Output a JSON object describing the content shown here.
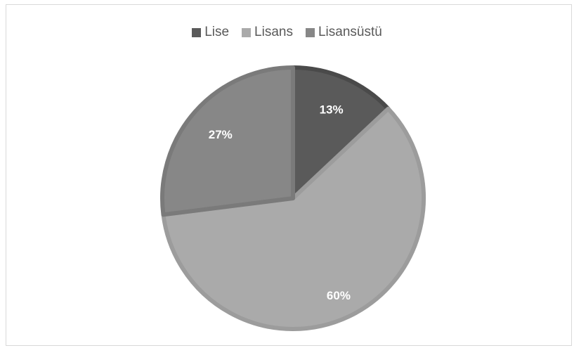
{
  "chart_data": {
    "type": "pie",
    "title": "",
    "legend_position": "top",
    "categories": [
      "Lise",
      "Lisans",
      "Lisansüstü"
    ],
    "values": [
      13,
      60,
      27
    ],
    "data_labels": [
      "13%",
      "60%",
      "27%"
    ],
    "colors": [
      "#5a5a5a",
      "#aaaaaa",
      "#878787"
    ],
    "border_colors": [
      "#4a4a4a",
      "#9c9c9c",
      "#7a7a7a"
    ]
  }
}
